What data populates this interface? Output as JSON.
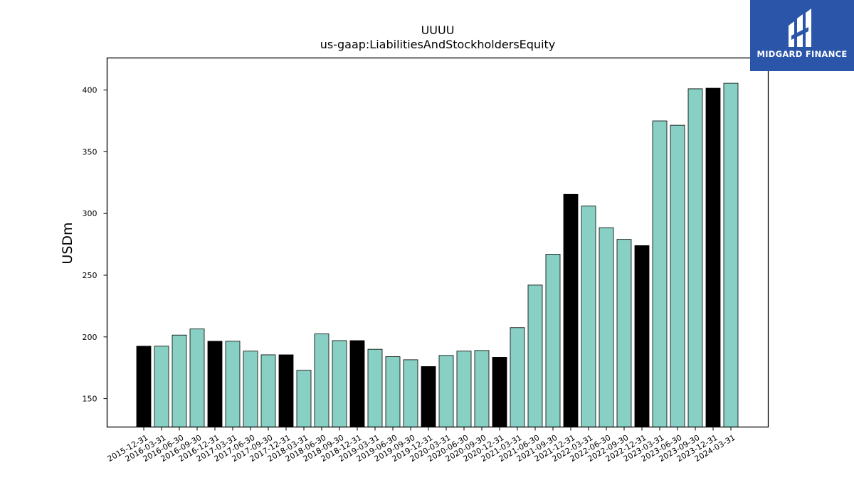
{
  "logo": {
    "text": "MIDGARD FINANCE",
    "color": "#2b55a8"
  },
  "chart_data": {
    "type": "bar",
    "title": "UUUU",
    "subtitle": "us-gaap:LiabilitiesAndStockholdersEquity",
    "ylabel": "USDm",
    "xlabel": "",
    "ylim": [
      127,
      426
    ],
    "yticks": [
      150,
      200,
      250,
      300,
      350,
      400
    ],
    "grid": false,
    "colors": {
      "quarter": "#88d0c3",
      "year_end": "#000000"
    },
    "categories": [
      "2015-12-31",
      "2016-03-31",
      "2016-06-30",
      "2016-09-30",
      "2016-12-31",
      "2017-03-31",
      "2017-06-30",
      "2017-09-30",
      "2017-12-31",
      "2018-03-31",
      "2018-06-30",
      "2018-09-30",
      "2018-12-31",
      "2019-03-31",
      "2019-06-30",
      "2019-09-30",
      "2019-12-31",
      "2020-03-31",
      "2020-06-30",
      "2020-09-30",
      "2020-12-31",
      "2021-03-31",
      "2021-06-30",
      "2021-09-30",
      "2021-12-31",
      "2022-03-31",
      "2022-06-30",
      "2022-09-30",
      "2022-12-31",
      "2023-03-31",
      "2023-06-30",
      "2023-09-30",
      "2023-12-31",
      "2024-03-31"
    ],
    "values": [
      192.5,
      192.5,
      201.5,
      206.5,
      196.5,
      196.5,
      188.5,
      185.5,
      185.5,
      173.0,
      202.5,
      197.0,
      197.0,
      190.0,
      184.0,
      181.5,
      176.0,
      185.0,
      188.5,
      189.0,
      183.5,
      207.5,
      242.0,
      267.0,
      315.5,
      306.0,
      288.5,
      279.0,
      274.0,
      375.0,
      371.5,
      401.0,
      401.5,
      405.5
    ],
    "year_end_flags": [
      true,
      false,
      false,
      false,
      true,
      false,
      false,
      false,
      true,
      false,
      false,
      false,
      true,
      false,
      false,
      false,
      true,
      false,
      false,
      false,
      true,
      false,
      false,
      false,
      true,
      false,
      false,
      false,
      true,
      false,
      false,
      false,
      true,
      false
    ]
  }
}
